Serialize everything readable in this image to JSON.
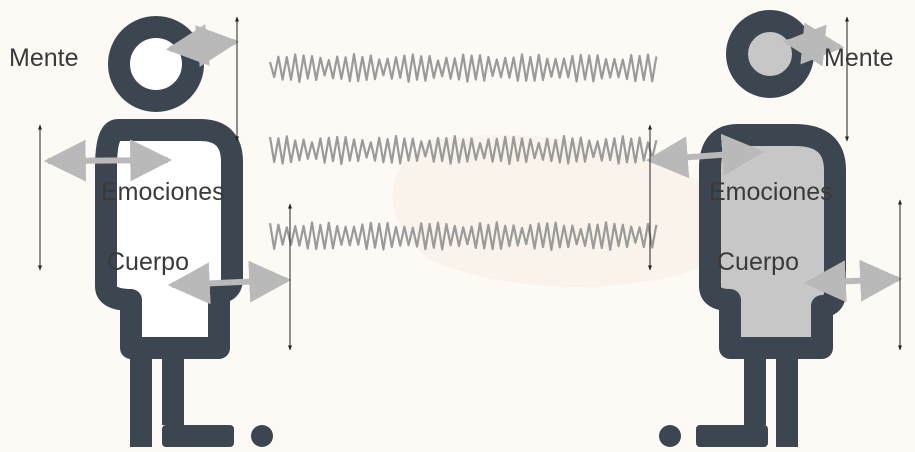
{
  "labels": {
    "mind": "Mente",
    "emotions": "Emociones",
    "body": "Cuerpo"
  },
  "colors": {
    "background": "#fdfaf6",
    "figure_outline": "#3c4650",
    "figure_left_fill": "#ffffff",
    "figure_right_fill": "#c7c7c7",
    "double_arrow": "#b9b9b9",
    "wave": "#9a9a9a",
    "measure_line": "#222222"
  }
}
